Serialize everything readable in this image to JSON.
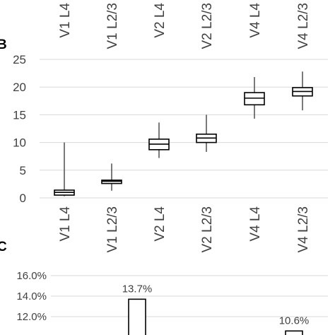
{
  "chart_data": [
    {
      "type": "box",
      "panel_label": "B",
      "categories": [
        "V1 L4",
        "V1 L2/3",
        "V2 L4",
        "V2 L2/3",
        "V4 L4",
        "V4 L2/3"
      ],
      "boxes": [
        {
          "min": 0.3,
          "q1": 0.5,
          "median": 1.0,
          "q3": 1.4,
          "max": 10.0
        },
        {
          "min": 1.3,
          "q1": 2.6,
          "median": 3.0,
          "q3": 3.2,
          "max": 6.2
        },
        {
          "min": 7.2,
          "q1": 8.7,
          "median": 9.7,
          "q3": 10.6,
          "max": 13.6
        },
        {
          "min": 8.3,
          "q1": 10.0,
          "median": 10.8,
          "q3": 11.5,
          "max": 15.0
        },
        {
          "min": 14.3,
          "q1": 16.8,
          "median": 18.0,
          "q3": 19.0,
          "max": 21.8
        },
        {
          "min": 15.8,
          "q1": 18.4,
          "median": 19.2,
          "q3": 19.9,
          "max": 22.8
        }
      ],
      "ylim": [
        0,
        25
      ],
      "yticks": [
        "0",
        "5",
        "10",
        "15",
        "20",
        "25"
      ],
      "grid": true
    },
    {
      "type": "bar",
      "panel_label": "C",
      "yticks": [
        "12.0%",
        "14.0%",
        "16.0%"
      ],
      "ylim": [
        10,
        16
      ],
      "bars": [
        {
          "value": 13.7,
          "label": "13.7%"
        },
        {
          "value": 10.6,
          "label": "10.6%"
        }
      ],
      "grid": true
    }
  ],
  "top_axis": {
    "labels": [
      "V1 L4",
      "V1 L2/3",
      "V2 L4",
      "V2 L2/3",
      "V4 L4",
      "V4 L2/3"
    ]
  }
}
